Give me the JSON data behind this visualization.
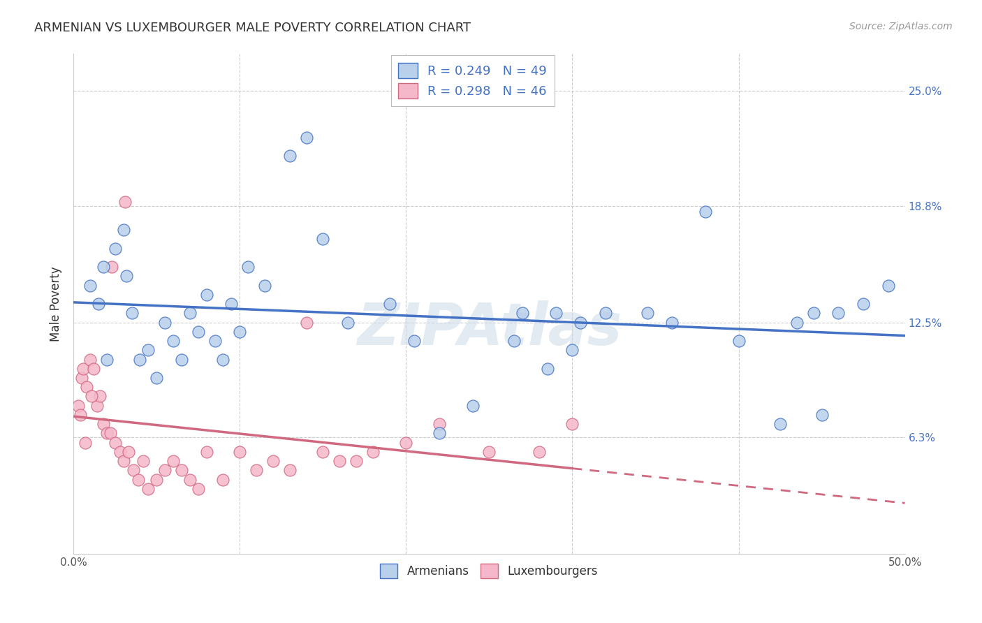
{
  "title": "ARMENIAN VS LUXEMBOURGER MALE POVERTY CORRELATION CHART",
  "source": "Source: ZipAtlas.com",
  "ylabel": "Male Poverty",
  "ytick_labels": [
    "6.3%",
    "12.5%",
    "18.8%",
    "25.0%"
  ],
  "ytick_values": [
    6.3,
    12.5,
    18.8,
    25.0
  ],
  "xmin": 0.0,
  "xmax": 50.0,
  "ymin": 0.0,
  "ymax": 27.0,
  "armenians_R": "0.249",
  "armenians_N": "49",
  "luxembourgers_R": "0.298",
  "luxembourgers_N": "46",
  "armenians_fill": "#b8d0ea",
  "armenians_edge": "#4472c4",
  "luxembourgers_fill": "#f5b8ca",
  "luxembourgers_edge": "#d06880",
  "armenians_line": "#4472c4",
  "luxembourgers_line": "#d06880",
  "legend_armenians": "Armenians",
  "legend_luxembourgers": "Luxembourgers",
  "arm_x": [
    1.0,
    1.5,
    1.8,
    2.0,
    2.5,
    3.0,
    3.2,
    3.5,
    4.0,
    4.5,
    5.0,
    5.5,
    6.0,
    6.5,
    7.0,
    7.5,
    8.0,
    8.5,
    9.0,
    9.5,
    10.0,
    10.5,
    11.5,
    13.0,
    14.0,
    15.0,
    16.5,
    19.0,
    20.5,
    22.0,
    24.0,
    26.5,
    28.5,
    30.0,
    32.0,
    34.5,
    36.0,
    38.0,
    40.0,
    42.5,
    44.5,
    45.0,
    46.0,
    47.5,
    49.0,
    27.0,
    30.5,
    29.0,
    43.5
  ],
  "arm_y": [
    14.5,
    13.5,
    15.5,
    10.5,
    16.5,
    17.5,
    15.0,
    13.0,
    10.5,
    11.0,
    9.5,
    12.5,
    11.5,
    10.5,
    13.0,
    12.0,
    14.0,
    11.5,
    10.5,
    13.5,
    12.0,
    15.5,
    14.5,
    21.5,
    22.5,
    17.0,
    12.5,
    13.5,
    11.5,
    6.5,
    8.0,
    11.5,
    10.0,
    11.0,
    13.0,
    13.0,
    12.5,
    18.5,
    11.5,
    7.0,
    13.0,
    7.5,
    13.0,
    13.5,
    14.5,
    13.0,
    12.5,
    13.0,
    12.5
  ],
  "lux_x": [
    0.3,
    0.5,
    0.6,
    0.8,
    1.0,
    1.2,
    1.4,
    1.6,
    1.8,
    2.0,
    2.2,
    2.5,
    2.8,
    3.0,
    3.3,
    3.6,
    3.9,
    4.2,
    4.5,
    5.0,
    5.5,
    6.0,
    6.5,
    7.0,
    7.5,
    8.0,
    9.0,
    10.0,
    11.0,
    12.0,
    13.0,
    14.0,
    15.0,
    16.0,
    17.0,
    18.0,
    20.0,
    22.0,
    25.0,
    28.0,
    30.0,
    0.4,
    0.7,
    1.1,
    2.3,
    3.1
  ],
  "lux_y": [
    8.0,
    9.5,
    10.0,
    9.0,
    10.5,
    10.0,
    8.0,
    8.5,
    7.0,
    6.5,
    6.5,
    6.0,
    5.5,
    5.0,
    5.5,
    4.5,
    4.0,
    5.0,
    3.5,
    4.0,
    4.5,
    5.0,
    4.5,
    4.0,
    3.5,
    5.5,
    4.0,
    5.5,
    4.5,
    5.0,
    4.5,
    12.5,
    5.5,
    5.0,
    5.0,
    5.5,
    6.0,
    7.0,
    5.5,
    5.5,
    7.0,
    7.5,
    6.0,
    8.5,
    15.5,
    19.0
  ],
  "lux_data_xmax": 30.0,
  "background": "#ffffff",
  "grid_color": "#cccccc",
  "title_color": "#333333",
  "axis_color": "#555555",
  "right_tick_color": "#4472c4",
  "watermark_text": "ZIPAtlas",
  "watermark_color": "#d0dcea"
}
